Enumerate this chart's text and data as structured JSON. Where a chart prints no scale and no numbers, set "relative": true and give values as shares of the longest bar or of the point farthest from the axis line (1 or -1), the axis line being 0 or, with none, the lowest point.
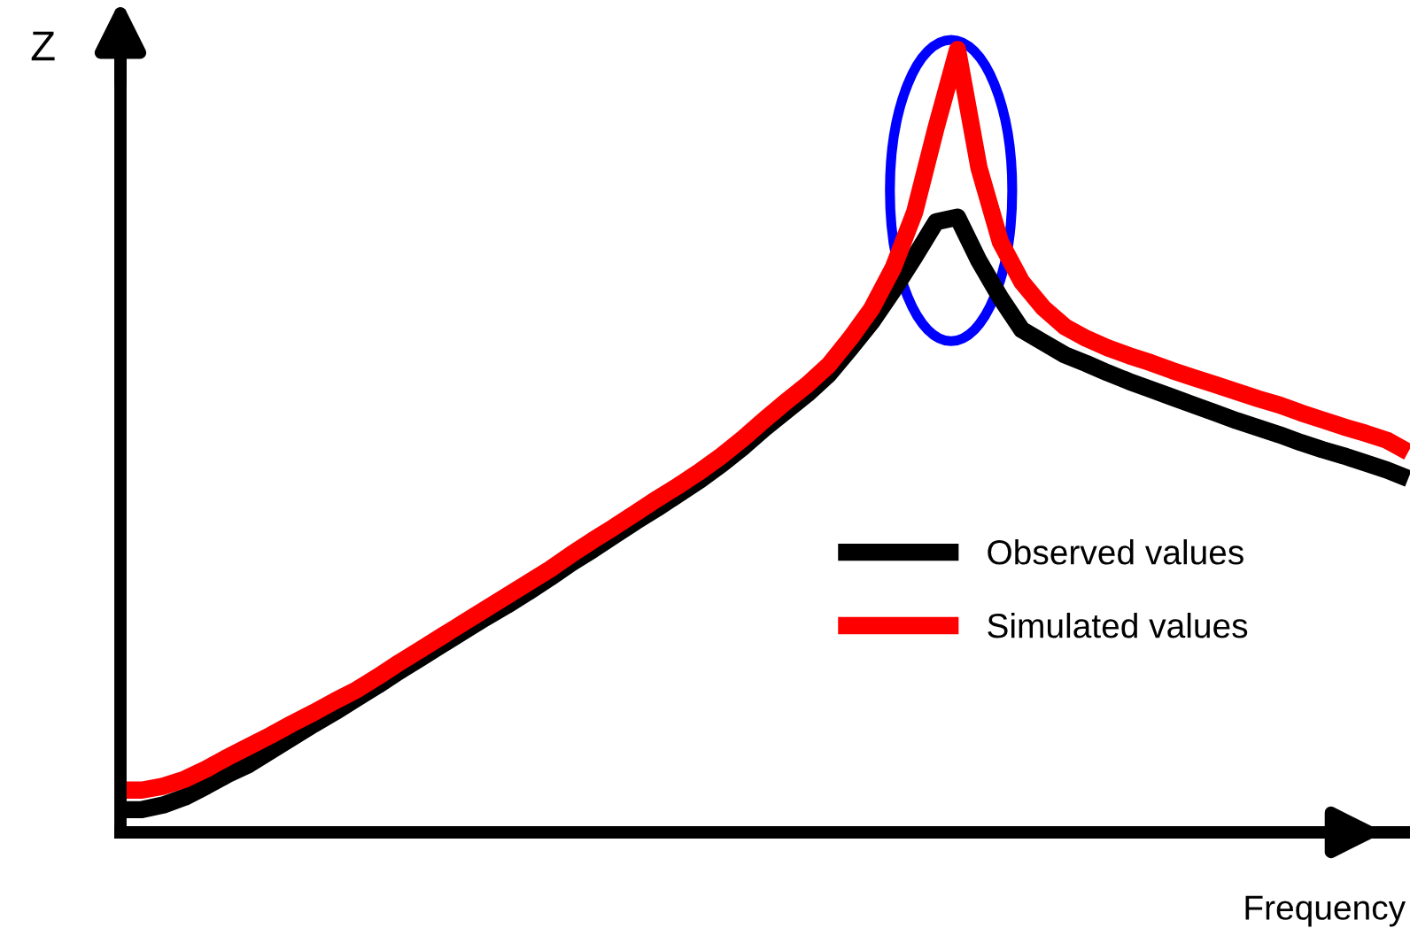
{
  "chart_data": {
    "type": "line",
    "relative": true,
    "xlabel": "Frequency",
    "ylabel": "Z",
    "legend": "lower right",
    "marker": "none",
    "line_style": "solid",
    "categories": [
      null,
      null,
      null,
      null,
      null,
      null,
      null,
      null,
      null,
      null,
      null,
      null,
      null,
      null,
      null,
      null,
      null,
      null,
      null,
      null,
      null,
      null,
      null,
      null,
      null,
      null,
      null,
      null,
      null,
      null,
      null,
      null,
      null,
      null,
      null,
      null,
      null,
      null,
      null,
      null,
      null,
      null,
      null,
      null,
      null,
      null,
      null,
      null,
      null,
      null,
      null,
      null,
      null,
      null,
      null,
      null,
      null,
      null,
      null,
      null,
      null
    ],
    "series": [
      {
        "name": "Observed values",
        "color": "#000000",
        "values": [
          0.029,
          0.029,
          0.035,
          0.045,
          0.059,
          0.074,
          0.087,
          0.104,
          0.121,
          0.138,
          0.154,
          0.171,
          0.188,
          0.206,
          0.223,
          0.24,
          0.257,
          0.274,
          0.29,
          0.307,
          0.325,
          0.344,
          0.361,
          0.379,
          0.397,
          0.414,
          0.432,
          0.45,
          0.47,
          0.492,
          0.516,
          0.538,
          0.56,
          0.585,
          0.618,
          0.652,
          0.692,
          0.735,
          0.78,
          0.786,
          0.73,
          0.683,
          0.642,
          0.626,
          0.61,
          0.599,
          0.587,
          0.576,
          0.566,
          0.556,
          0.546,
          0.536,
          0.526,
          0.517,
          0.508,
          0.498,
          0.489,
          0.481,
          0.472,
          0.463,
          0.452
        ]
      },
      {
        "name": "Simulated values",
        "color": "#ff0000",
        "values": [
          0.054,
          0.054,
          0.059,
          0.068,
          0.081,
          0.096,
          0.11,
          0.124,
          0.139,
          0.153,
          0.168,
          0.182,
          0.199,
          0.217,
          0.234,
          0.251,
          0.268,
          0.285,
          0.302,
          0.319,
          0.336,
          0.355,
          0.373,
          0.39,
          0.408,
          0.426,
          0.443,
          0.461,
          0.481,
          0.503,
          0.527,
          0.55,
          0.572,
          0.597,
          0.631,
          0.669,
          0.721,
          0.792,
          0.9,
          1.0,
          0.849,
          0.754,
          0.703,
          0.67,
          0.646,
          0.631,
          0.619,
          0.609,
          0.6,
          0.59,
          0.581,
          0.572,
          0.563,
          0.554,
          0.546,
          0.536,
          0.527,
          0.518,
          0.51,
          0.501,
          0.486
        ]
      }
    ]
  }
}
